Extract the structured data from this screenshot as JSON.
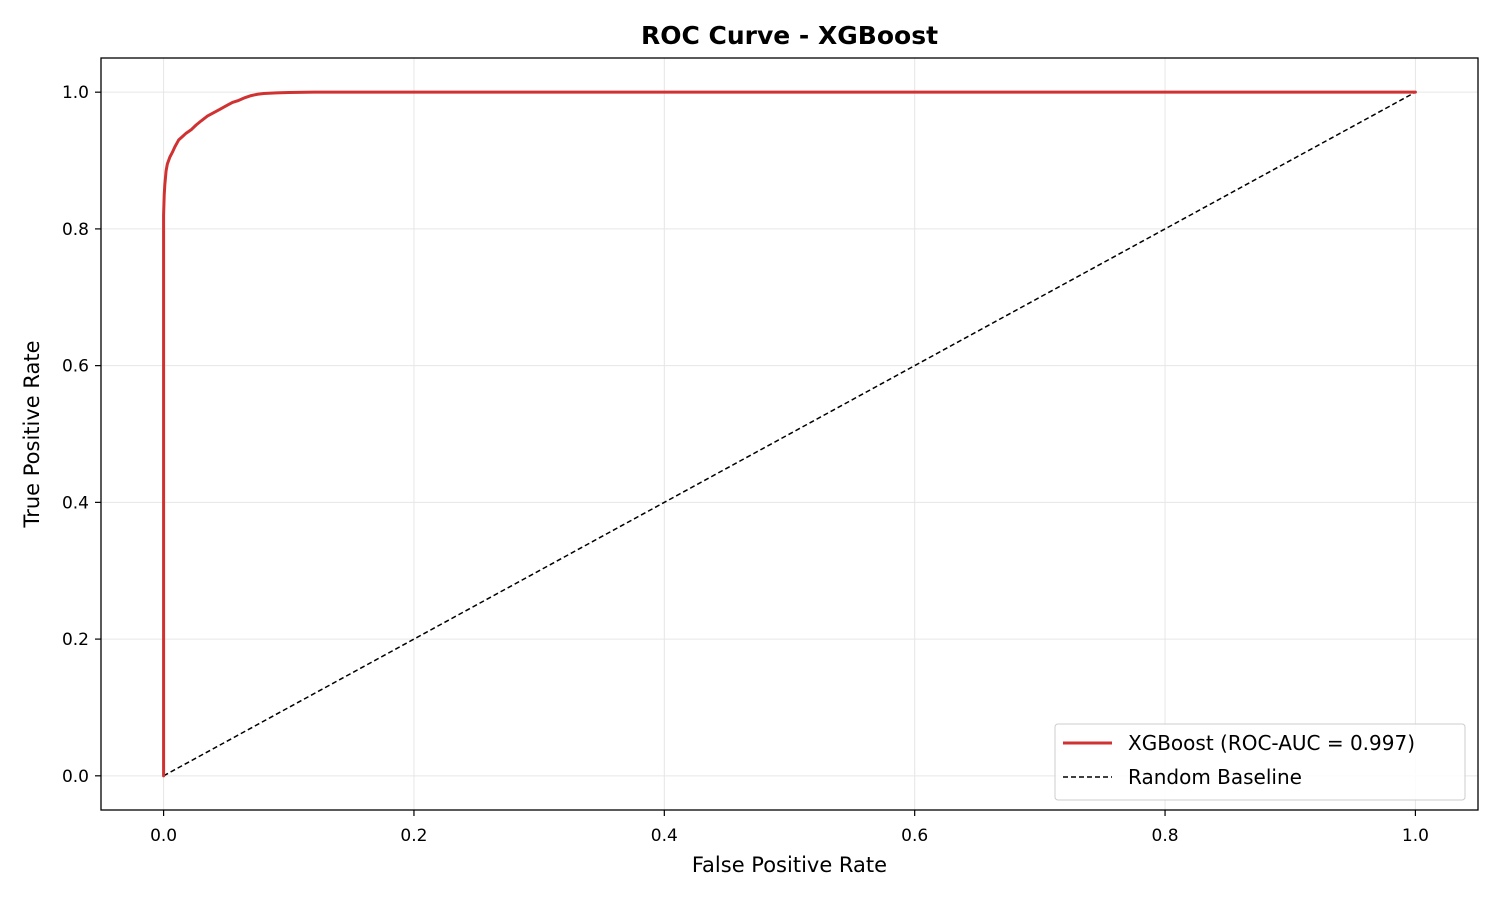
{
  "chart_data": {
    "type": "line",
    "title": "ROC Curve - XGBoost",
    "xlabel": "False Positive Rate",
    "ylabel": "True Positive Rate",
    "xlim": [
      -0.05,
      1.05
    ],
    "ylim": [
      -0.05,
      1.05
    ],
    "xticks": [
      0.0,
      0.2,
      0.4,
      0.6,
      0.8,
      1.0
    ],
    "xtick_labels": [
      "0.0",
      "0.2",
      "0.4",
      "0.6",
      "0.8",
      "1.0"
    ],
    "yticks": [
      0.0,
      0.2,
      0.4,
      0.6,
      0.8,
      1.0
    ],
    "ytick_labels": [
      "0.0",
      "0.2",
      "0.4",
      "0.6",
      "0.8",
      "1.0"
    ],
    "grid": true,
    "legend_position": "lower-right",
    "series": [
      {
        "name": "XGBoost (ROC-AUC = 0.997)",
        "color": "#d03232",
        "style": "solid",
        "x": [
          0.0,
          0.0,
          0.0005,
          0.001,
          0.0015,
          0.002,
          0.003,
          0.004,
          0.005,
          0.007,
          0.009,
          0.012,
          0.015,
          0.018,
          0.022,
          0.026,
          0.03,
          0.035,
          0.04,
          0.045,
          0.05,
          0.055,
          0.06,
          0.065,
          0.07,
          0.075,
          0.08,
          0.09,
          0.1,
          0.12,
          0.15,
          0.2,
          0.3,
          0.5,
          0.7,
          0.9,
          1.0
        ],
        "y": [
          0.0,
          0.82,
          0.85,
          0.865,
          0.875,
          0.885,
          0.895,
          0.9,
          0.905,
          0.912,
          0.92,
          0.93,
          0.935,
          0.94,
          0.945,
          0.952,
          0.958,
          0.965,
          0.97,
          0.975,
          0.98,
          0.985,
          0.988,
          0.992,
          0.995,
          0.997,
          0.998,
          0.999,
          0.9995,
          1.0,
          1.0,
          1.0,
          1.0,
          1.0,
          1.0,
          1.0,
          1.0
        ]
      },
      {
        "name": "Random Baseline",
        "color": "#000000",
        "style": "dashed",
        "x": [
          0.0,
          1.0
        ],
        "y": [
          0.0,
          1.0
        ]
      }
    ]
  }
}
